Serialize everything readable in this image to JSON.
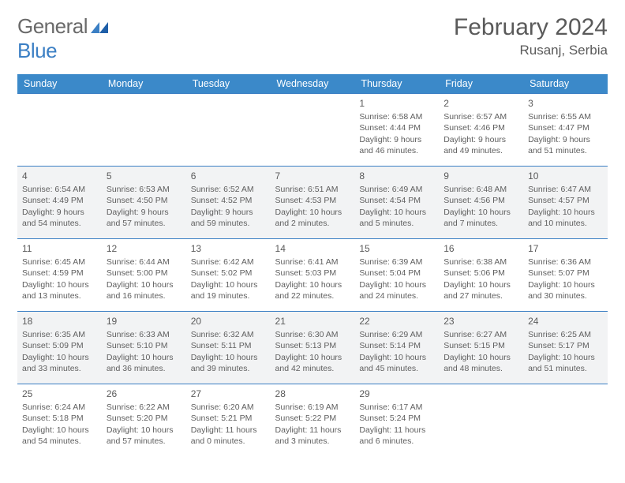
{
  "brand": {
    "part1": "General",
    "part2": "Blue"
  },
  "title": "February 2024",
  "location": "Rusanj, Serbia",
  "colors": {
    "header_bg": "#3b89c9",
    "header_fg": "#ffffff",
    "border": "#3b7fc4",
    "text": "#5a5a5a",
    "alt_row": "#f2f3f4",
    "logo_gray": "#6a6a6a",
    "logo_blue": "#3b7fc4"
  },
  "weekdays": [
    "Sunday",
    "Monday",
    "Tuesday",
    "Wednesday",
    "Thursday",
    "Friday",
    "Saturday"
  ],
  "weeks": [
    [
      null,
      null,
      null,
      null,
      {
        "n": "1",
        "sr": "6:58 AM",
        "ss": "4:44 PM",
        "dl": "9 hours and 46 minutes."
      },
      {
        "n": "2",
        "sr": "6:57 AM",
        "ss": "4:46 PM",
        "dl": "9 hours and 49 minutes."
      },
      {
        "n": "3",
        "sr": "6:55 AM",
        "ss": "4:47 PM",
        "dl": "9 hours and 51 minutes."
      }
    ],
    [
      {
        "n": "4",
        "sr": "6:54 AM",
        "ss": "4:49 PM",
        "dl": "9 hours and 54 minutes."
      },
      {
        "n": "5",
        "sr": "6:53 AM",
        "ss": "4:50 PM",
        "dl": "9 hours and 57 minutes."
      },
      {
        "n": "6",
        "sr": "6:52 AM",
        "ss": "4:52 PM",
        "dl": "9 hours and 59 minutes."
      },
      {
        "n": "7",
        "sr": "6:51 AM",
        "ss": "4:53 PM",
        "dl": "10 hours and 2 minutes."
      },
      {
        "n": "8",
        "sr": "6:49 AM",
        "ss": "4:54 PM",
        "dl": "10 hours and 5 minutes."
      },
      {
        "n": "9",
        "sr": "6:48 AM",
        "ss": "4:56 PM",
        "dl": "10 hours and 7 minutes."
      },
      {
        "n": "10",
        "sr": "6:47 AM",
        "ss": "4:57 PM",
        "dl": "10 hours and 10 minutes."
      }
    ],
    [
      {
        "n": "11",
        "sr": "6:45 AM",
        "ss": "4:59 PM",
        "dl": "10 hours and 13 minutes."
      },
      {
        "n": "12",
        "sr": "6:44 AM",
        "ss": "5:00 PM",
        "dl": "10 hours and 16 minutes."
      },
      {
        "n": "13",
        "sr": "6:42 AM",
        "ss": "5:02 PM",
        "dl": "10 hours and 19 minutes."
      },
      {
        "n": "14",
        "sr": "6:41 AM",
        "ss": "5:03 PM",
        "dl": "10 hours and 22 minutes."
      },
      {
        "n": "15",
        "sr": "6:39 AM",
        "ss": "5:04 PM",
        "dl": "10 hours and 24 minutes."
      },
      {
        "n": "16",
        "sr": "6:38 AM",
        "ss": "5:06 PM",
        "dl": "10 hours and 27 minutes."
      },
      {
        "n": "17",
        "sr": "6:36 AM",
        "ss": "5:07 PM",
        "dl": "10 hours and 30 minutes."
      }
    ],
    [
      {
        "n": "18",
        "sr": "6:35 AM",
        "ss": "5:09 PM",
        "dl": "10 hours and 33 minutes."
      },
      {
        "n": "19",
        "sr": "6:33 AM",
        "ss": "5:10 PM",
        "dl": "10 hours and 36 minutes."
      },
      {
        "n": "20",
        "sr": "6:32 AM",
        "ss": "5:11 PM",
        "dl": "10 hours and 39 minutes."
      },
      {
        "n": "21",
        "sr": "6:30 AM",
        "ss": "5:13 PM",
        "dl": "10 hours and 42 minutes."
      },
      {
        "n": "22",
        "sr": "6:29 AM",
        "ss": "5:14 PM",
        "dl": "10 hours and 45 minutes."
      },
      {
        "n": "23",
        "sr": "6:27 AM",
        "ss": "5:15 PM",
        "dl": "10 hours and 48 minutes."
      },
      {
        "n": "24",
        "sr": "6:25 AM",
        "ss": "5:17 PM",
        "dl": "10 hours and 51 minutes."
      }
    ],
    [
      {
        "n": "25",
        "sr": "6:24 AM",
        "ss": "5:18 PM",
        "dl": "10 hours and 54 minutes."
      },
      {
        "n": "26",
        "sr": "6:22 AM",
        "ss": "5:20 PM",
        "dl": "10 hours and 57 minutes."
      },
      {
        "n": "27",
        "sr": "6:20 AM",
        "ss": "5:21 PM",
        "dl": "11 hours and 0 minutes."
      },
      {
        "n": "28",
        "sr": "6:19 AM",
        "ss": "5:22 PM",
        "dl": "11 hours and 3 minutes."
      },
      {
        "n": "29",
        "sr": "6:17 AM",
        "ss": "5:24 PM",
        "dl": "11 hours and 6 minutes."
      },
      null,
      null
    ]
  ],
  "labels": {
    "sunrise": "Sunrise:",
    "sunset": "Sunset:",
    "daylight": "Daylight:"
  }
}
